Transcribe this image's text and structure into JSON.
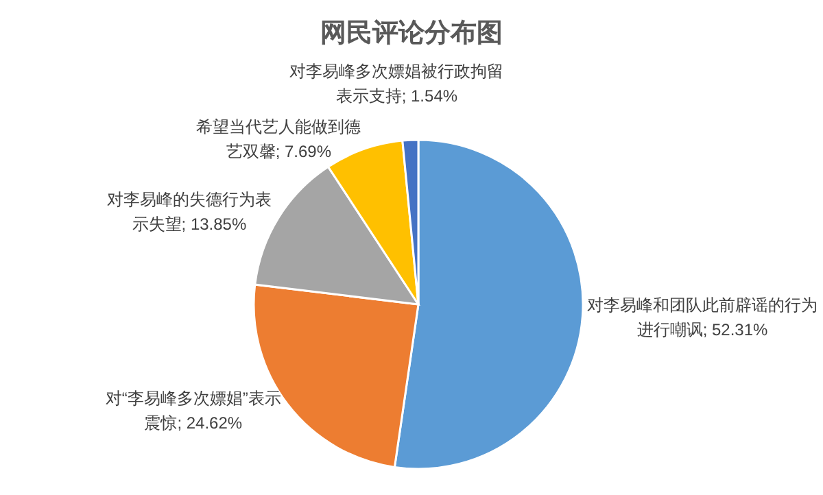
{
  "chart_data": {
    "type": "pie",
    "title": "网民评论分布图",
    "categories": [
      "对李易峰和团队此前辟谣的行为进行嘲讽",
      "对“李易峰多次嫖娼”表示震惊",
      "对李易峰的失德行为表示失望",
      "希望当代艺人能做到德艺双馨",
      "对李易峰多次嫖娼被行政拘留表示支持"
    ],
    "values": [
      52.31,
      24.62,
      13.85,
      7.69,
      1.54
    ],
    "value_labels": [
      "; 52.31%",
      "; 24.62%",
      "; 13.85%",
      "; 7.69%",
      "; 1.54%"
    ],
    "colors": [
      "#5b9bd5",
      "#ed7d31",
      "#a5a5a5",
      "#ffc000",
      "#4472c4"
    ]
  }
}
